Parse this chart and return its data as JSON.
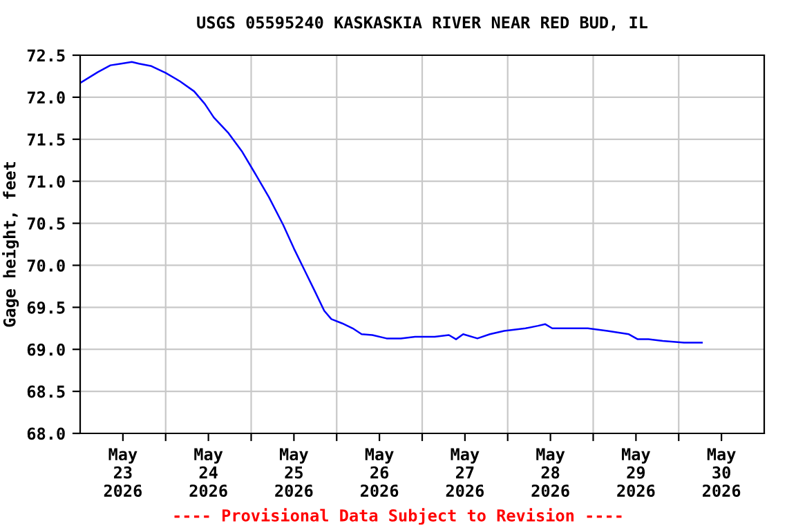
{
  "chart_data": {
    "type": "line",
    "title": "USGS 05595240 KASKASKIA RIVER NEAR RED BUD, IL",
    "ylabel": "Gage height, feet",
    "x": [
      "2026-05-23T00:00",
      "2026-05-23T05:00",
      "2026-05-23T08:30",
      "2026-05-23T11:30",
      "2026-05-23T14:30",
      "2026-05-23T16:30",
      "2026-05-23T20:00",
      "2026-05-24T00:00",
      "2026-05-24T04:00",
      "2026-05-24T08:00",
      "2026-05-24T11:00",
      "2026-05-24T13:30",
      "2026-05-24T17:30",
      "2026-05-24T21:30",
      "2026-05-25T01:00",
      "2026-05-25T05:00",
      "2026-05-25T09:00",
      "2026-05-25T12:00",
      "2026-05-25T15:00",
      "2026-05-25T18:00",
      "2026-05-25T20:30",
      "2026-05-25T22:30",
      "2026-05-26T01:30",
      "2026-05-26T04:30",
      "2026-05-26T07:00",
      "2026-05-26T10:00",
      "2026-05-26T14:00",
      "2026-05-26T18:00",
      "2026-05-26T22:00",
      "2026-05-27T03:30",
      "2026-05-27T07:30",
      "2026-05-27T09:30",
      "2026-05-27T11:30",
      "2026-05-27T15:30",
      "2026-05-27T19:00",
      "2026-05-27T23:00",
      "2026-05-28T05:00",
      "2026-05-28T08:30",
      "2026-05-28T10:30",
      "2026-05-28T12:30",
      "2026-05-28T16:30",
      "2026-05-28T22:30",
      "2026-05-29T04:00",
      "2026-05-29T10:00",
      "2026-05-29T12:30",
      "2026-05-29T15:30",
      "2026-05-29T19:30",
      "2026-05-30T01:30",
      "2026-05-30T06:30"
    ],
    "series": [
      {
        "color": "#0000ff",
        "values": [
          72.17,
          72.3,
          72.38,
          72.4,
          72.42,
          72.4,
          72.37,
          72.29,
          72.19,
          72.07,
          71.92,
          71.76,
          71.58,
          71.35,
          71.1,
          70.81,
          70.48,
          70.2,
          69.94,
          69.68,
          69.46,
          69.36,
          69.31,
          69.25,
          69.18,
          69.17,
          69.13,
          69.13,
          69.15,
          69.15,
          69.17,
          69.12,
          69.18,
          69.13,
          69.18,
          69.22,
          69.25,
          69.28,
          69.3,
          69.25,
          69.25,
          69.25,
          69.22,
          69.18,
          69.12,
          69.12,
          69.1,
          69.08,
          69.08
        ]
      }
    ],
    "xlim": [
      "2026-05-23T00:00",
      "2026-05-31T00:00"
    ],
    "xticks": [
      {
        "value": "2026-05-23T12:00",
        "label": "May\n23\n2026"
      },
      {
        "value": "2026-05-24T00:00",
        "label": null
      },
      {
        "value": "2026-05-24T12:00",
        "label": "May\n24\n2026"
      },
      {
        "value": "2026-05-25T00:00",
        "label": null
      },
      {
        "value": "2026-05-25T12:00",
        "label": "May\n25\n2026"
      },
      {
        "value": "2026-05-26T00:00",
        "label": null
      },
      {
        "value": "2026-05-26T12:00",
        "label": "May\n26\n2026"
      },
      {
        "value": "2026-05-27T00:00",
        "label": null
      },
      {
        "value": "2026-05-27T12:00",
        "label": "May\n27\n2026"
      },
      {
        "value": "2026-05-28T00:00",
        "label": null
      },
      {
        "value": "2026-05-28T12:00",
        "label": "May\n28\n2026"
      },
      {
        "value": "2026-05-29T00:00",
        "label": null
      },
      {
        "value": "2026-05-29T12:00",
        "label": "May\n29\n2026"
      },
      {
        "value": "2026-05-30T00:00",
        "label": null
      },
      {
        "value": "2026-05-30T12:00",
        "label": "May\n30\n2026"
      }
    ],
    "ylim": [
      68.0,
      72.5
    ],
    "yticks": [
      {
        "value": 68,
        "label": "68.0"
      },
      68.5,
      {
        "value": 69,
        "label": "69.0"
      },
      69.5,
      {
        "value": 70,
        "label": "70.0"
      },
      70.5,
      {
        "value": 71,
        "label": "71.0"
      },
      71.5,
      {
        "value": 72,
        "label": "72.0"
      },
      72.5
    ],
    "grid": true,
    "legend": false,
    "marker": "none",
    "line_style": "solid",
    "annotations": [
      "---- Provisional Data Subject to Revision ----"
    ]
  }
}
